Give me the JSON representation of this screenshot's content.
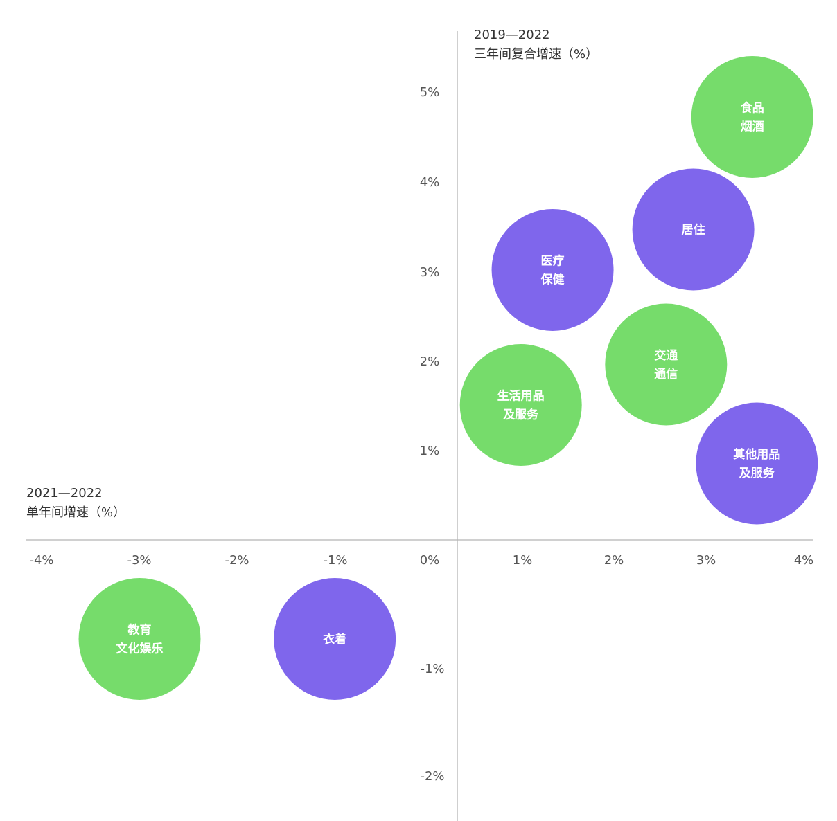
{
  "chart_data": {
    "type": "scatter",
    "xlabel": [
      "2021—2022",
      "单年间增速（%）"
    ],
    "ylabel": [
      "2019—2022",
      "三年间复合增速（%）"
    ],
    "x_ticks": [
      "-4%",
      "-3%",
      "-2%",
      "-1%",
      "0%",
      "1%",
      "2%",
      "3%",
      "4%"
    ],
    "y_ticks": [
      "5%",
      "4%",
      "3%",
      "2%",
      "1%",
      "-1%",
      "-2%"
    ],
    "grid": false,
    "colors": {
      "green": "#72db66",
      "purple": "#7f66ec"
    },
    "points": [
      {
        "label": [
          "食品",
          "烟酒"
        ],
        "x": 3.25,
        "y": 4.7,
        "color": "green"
      },
      {
        "label": [
          "居住"
        ],
        "x": 2.6,
        "y": 3.45,
        "color": "purple"
      },
      {
        "label": [
          "医疗",
          "保健"
        ],
        "x": 1.05,
        "y": 3.0,
        "color": "purple"
      },
      {
        "label": [
          "交通",
          "通信"
        ],
        "x": 2.3,
        "y": 1.95,
        "color": "green"
      },
      {
        "label": [
          "生活用品",
          "及服务"
        ],
        "x": 0.7,
        "y": 1.5,
        "color": "green"
      },
      {
        "label": [
          "其他用品",
          "及服务"
        ],
        "x": 3.3,
        "y": 0.85,
        "color": "purple"
      },
      {
        "label": [
          "教育",
          "文化娱乐"
        ],
        "x": -3.5,
        "y": -1.1,
        "color": "green"
      },
      {
        "label": [
          "衣着"
        ],
        "x": -1.35,
        "y": -1.1,
        "color": "purple"
      }
    ]
  }
}
